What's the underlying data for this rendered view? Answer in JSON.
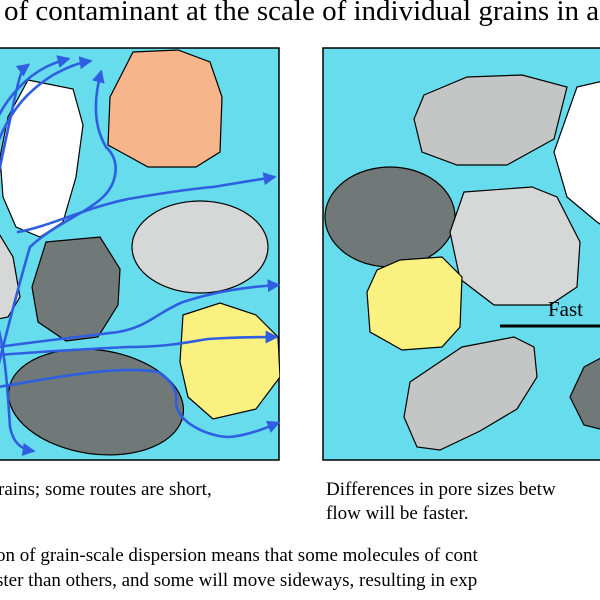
{
  "title": "of contaminant at the scale of individual grains in a",
  "panel_left": {
    "caption_line1": "rains; some routes are short,"
  },
  "panel_right": {
    "fast_label": "Fast",
    "caption_line1": "Differences in pore sizes betw",
    "caption_line2": "flow will be faster."
  },
  "bottom_text": {
    "line1": "on of grain-scale dispersion means that some molecules of cont",
    "line2": "ster than others, and some will move sideways, resulting in exp"
  },
  "colors": {
    "water": "#66dcec",
    "flow_arrow": "#2f5fe0",
    "grain_white": "#ffffff",
    "grain_light_gray": "#d6d8d8",
    "grain_mid_gray": "#c4c6c6",
    "grain_dark_gray": "#707878",
    "grain_orange": "#f6b58a",
    "grain_yellow": "#fbf181"
  }
}
